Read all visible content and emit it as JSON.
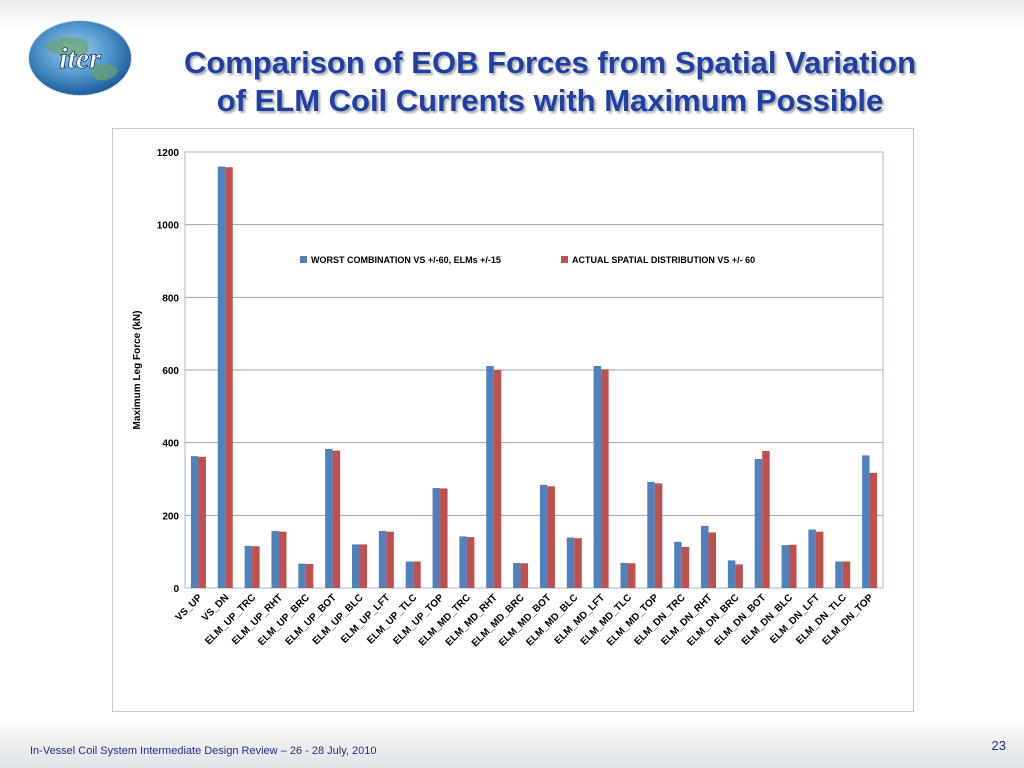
{
  "slide": {
    "title_line1": "Comparison of EOB Forces from Spatial Variation",
    "title_line2": "of ELM Coil Currents with Maximum Possible",
    "logo_text": "iter",
    "footer": "In-Vessel Coil System Intermediate Design Review – 26 - 28 July, 2010",
    "page_number": "23"
  },
  "colors": {
    "series1": "#4f81bd",
    "series2": "#c0504d",
    "title": "#1e3fa6"
  },
  "chart_data": {
    "type": "bar",
    "title": "",
    "xlabel": "",
    "ylabel": "Maximum Leg Force (kN)",
    "ylim": [
      0,
      1200
    ],
    "yticks": [
      0,
      200,
      400,
      600,
      800,
      1000,
      1200
    ],
    "grid": true,
    "legend_position": "top-right",
    "categories": [
      "VS_UP",
      "VS_DN",
      "ELM_UP_TRC",
      "ELM_UP_RHT",
      "ELM_UP_BRC",
      "ELM_UP_BOT",
      "ELM_UP_BLC",
      "ELM_UP_LFT",
      "ELM_UP_TLC",
      "ELM_UP_TOP",
      "ELM_MD_TRC",
      "ELM_MD_RHT",
      "ELM_MD_BRC",
      "ELM_MD_BOT",
      "ELM_MD_BLC",
      "ELM_MD_LFT",
      "ELM_MD_TLC",
      "ELM_MD_TOP",
      "ELM_DN_TRC",
      "ELM_DN_RHT",
      "ELM_DN_BRC",
      "ELM_DN_BOT",
      "ELM_DN_BLC",
      "ELM_DN_LFT",
      "ELM_DN_TLC",
      "ELM_DN_TOP"
    ],
    "series": [
      {
        "name": "WORST COMBINATION VS +/-60, ELMs +/-15",
        "values": [
          363,
          1160,
          116,
          157,
          67,
          383,
          120,
          157,
          73,
          275,
          142,
          611,
          69,
          284,
          139,
          611,
          69,
          292,
          127,
          171,
          76,
          355,
          118,
          161,
          73,
          365
        ]
      },
      {
        "name": "ACTUAL SPATIAL DISTRIBUTION VS +/- 60",
        "values": [
          361,
          1158,
          115,
          155,
          66,
          378,
          120,
          155,
          73,
          274,
          140,
          600,
          68,
          280,
          137,
          602,
          68,
          288,
          113,
          153,
          65,
          377,
          119,
          155,
          73,
          317
        ]
      }
    ]
  }
}
